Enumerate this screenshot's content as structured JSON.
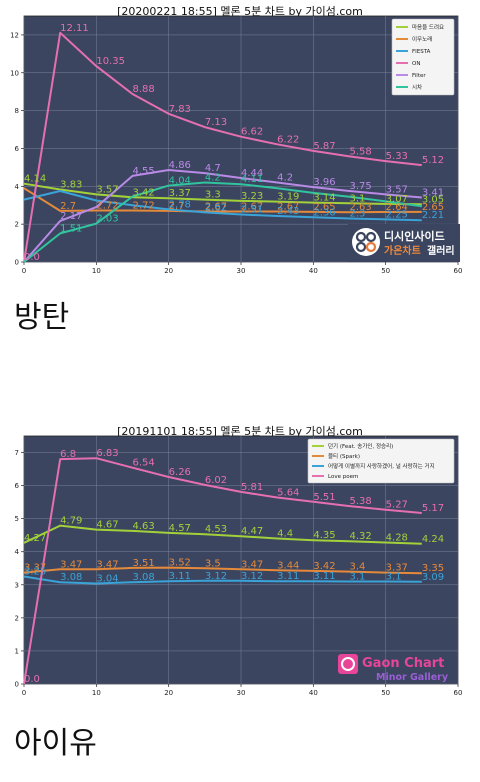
{
  "chart_data": [
    {
      "type": "line",
      "title": "[20200221 18:55] 멜론 5분 차트 by 가이섬.com",
      "xlim": [
        0,
        60
      ],
      "ylim": [
        0,
        13
      ],
      "xticks": [
        0,
        10,
        20,
        30,
        40,
        50,
        60
      ],
      "yticks": [
        0,
        2,
        4,
        6,
        8,
        10,
        12
      ],
      "grid": true,
      "legend_position": "top-right",
      "background": "#3b4560",
      "x": [
        0,
        5,
        10,
        15,
        20,
        25,
        30,
        35,
        40,
        45,
        50,
        55
      ],
      "series": [
        {
          "name": "마음을 드려요",
          "color": "#a3d13a",
          "values": [
            4.14,
            3.83,
            3.57,
            3.42,
            3.37,
            3.3,
            3.23,
            3.19,
            3.14,
            3.1,
            3.07,
            3.05
          ],
          "labels": [
            "4.14",
            "3.83",
            "3.57",
            "3.42",
            "3.37",
            "3.3",
            "3.23",
            "3.19",
            "3.14",
            "3.1",
            "3.07",
            "3.05"
          ]
        },
        {
          "name": "이무노래",
          "color": "#e58a3a",
          "values": [
            3.9,
            2.7,
            2.72,
            2.72,
            2.7,
            2.67,
            2.67,
            2.67,
            2.65,
            2.63,
            2.64,
            2.65
          ],
          "labels": [
            "",
            "2.7",
            "2.72",
            "2.72",
            "2.7",
            "2.67",
            "2.67",
            "2.67",
            "2.65",
            "2.63",
            "2.64",
            "2.65"
          ]
        },
        {
          "name": "FIESTA",
          "color": "#3aa3d8",
          "values": [
            3.3,
            3.75,
            3.25,
            3.0,
            2.78,
            2.62,
            2.51,
            2.43,
            2.36,
            2.3,
            2.25,
            2.21
          ],
          "labels": [
            "",
            "",
            "",
            "",
            "2.78",
            "2.62",
            "2.51",
            "2.43",
            "2.36",
            "2.3",
            "2.25",
            "2.21"
          ]
        },
        {
          "name": "ON",
          "color": "#e66fb0",
          "values": [
            0.0,
            12.11,
            10.35,
            8.88,
            7.83,
            7.13,
            6.62,
            6.22,
            5.87,
            5.58,
            5.33,
            5.12
          ],
          "labels": [
            "0.0",
            "12.11",
            "10.35",
            "8.88",
            "7.83",
            "7.13",
            "6.62",
            "6.22",
            "5.87",
            "5.58",
            "5.33",
            "5.12"
          ]
        },
        {
          "name": "Filter",
          "color": "#b98ae6",
          "values": [
            0.0,
            2.17,
            2.9,
            4.55,
            4.86,
            4.7,
            4.44,
            4.2,
            3.96,
            3.75,
            3.57,
            3.41
          ],
          "labels": [
            "",
            "2.17",
            "",
            "4.55",
            "4.86",
            "4.7",
            "4.44",
            "4.2",
            "3.96",
            "3.75",
            "3.57",
            "3.41"
          ]
        },
        {
          "name": "시차",
          "color": "#31c49e",
          "values": [
            0.0,
            1.51,
            2.03,
            3.46,
            4.04,
            4.2,
            4.11,
            3.9,
            3.65,
            3.45,
            3.2,
            2.95
          ],
          "labels": [
            "",
            "1.51",
            "2.03",
            "",
            "4.04",
            "4.2",
            "4.11",
            "",
            "",
            "",
            "",
            ""
          ]
        }
      ],
      "watermark": {
        "line1": "디시인사이드",
        "line2a": "가온차트",
        "line2b": "갤러리"
      }
    },
    {
      "type": "line",
      "title": "[20191101 18:55] 멜론 5분 차트 by 가이섬.com",
      "xlim": [
        0,
        60
      ],
      "ylim": [
        0,
        7.5
      ],
      "xticks": [
        0,
        10,
        20,
        30,
        40,
        50,
        60
      ],
      "yticks": [
        0,
        1,
        2,
        3,
        4,
        5,
        6,
        7
      ],
      "grid": true,
      "legend_position": "top-right",
      "background": "#3b4560",
      "x": [
        0,
        5,
        10,
        15,
        20,
        25,
        30,
        35,
        40,
        45,
        50,
        55
      ],
      "series": [
        {
          "name": "던기 (Feat. 송가인, 정승리)",
          "color": "#a3d13a",
          "values": [
            4.27,
            4.79,
            4.67,
            4.63,
            4.57,
            4.53,
            4.47,
            4.4,
            4.35,
            4.32,
            4.28,
            4.24
          ],
          "labels": [
            "4.27",
            "4.79",
            "4.67",
            "4.63",
            "4.57",
            "4.53",
            "4.47",
            "4.4",
            "4.35",
            "4.32",
            "4.28",
            "4.24"
          ]
        },
        {
          "name": "블티 (Spark)",
          "color": "#e58a3a",
          "values": [
            3.37,
            3.47,
            3.47,
            3.51,
            3.52,
            3.5,
            3.47,
            3.44,
            3.42,
            3.4,
            3.37,
            3.35
          ],
          "labels": [
            "3.37",
            "3.47",
            "3.47",
            "3.51",
            "3.52",
            "3.5",
            "3.47",
            "3.44",
            "3.42",
            "3.4",
            "3.37",
            "3.35"
          ]
        },
        {
          "name": "어떻게 이별까지 사랑하겠어, 널 사랑하는 거지",
          "color": "#3aa3d8",
          "values": [
            3.25,
            3.08,
            3.04,
            3.08,
            3.11,
            3.12,
            3.12,
            3.11,
            3.11,
            3.1,
            3.1,
            3.09
          ],
          "labels": [
            "3.25",
            "3.08",
            "3.04",
            "3.08",
            "3.11",
            "3.12",
            "3.12",
            "3.11",
            "3.11",
            "3.1",
            "3.1",
            "3.09"
          ]
        },
        {
          "name": "Love poem",
          "color": "#e66fb0",
          "values": [
            0.0,
            6.8,
            6.83,
            6.54,
            6.26,
            6.02,
            5.81,
            5.64,
            5.51,
            5.38,
            5.27,
            5.17
          ],
          "labels": [
            "0.0",
            "6.8",
            "6.83",
            "6.54",
            "6.26",
            "6.02",
            "5.81",
            "5.64",
            "5.51",
            "5.38",
            "5.27",
            "5.17"
          ]
        }
      ],
      "watermark": {
        "line1": "Gaon Chart",
        "line2": "Minor Gallery"
      }
    }
  ],
  "captions": [
    "방탄",
    "아이유"
  ]
}
